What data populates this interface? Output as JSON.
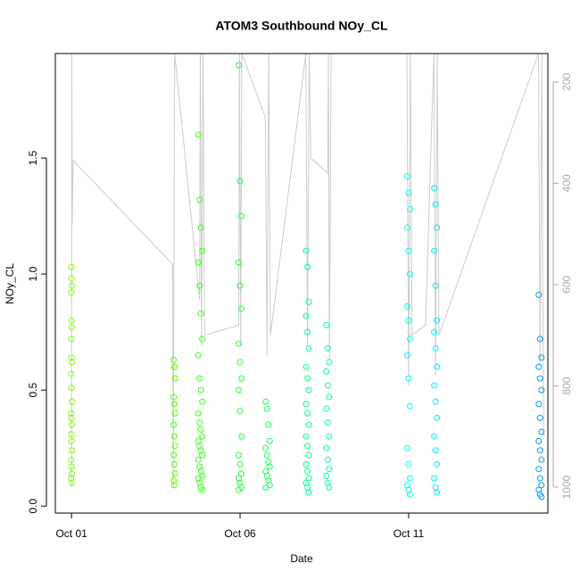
{
  "chart_data": {
    "type": "scatter",
    "title": "ATOM3 Southbound NOy_CL",
    "x_label": "Date",
    "y_label": "NOy_CL",
    "xlim": [
      0.52,
      15.13
    ],
    "xticks": [
      {
        "value": 1,
        "label": "Oct 01"
      },
      {
        "value": 6,
        "label": "Oct 06"
      },
      {
        "value": 11,
        "label": "Oct 11"
      }
    ],
    "ylim": [
      -0.03,
      1.95
    ],
    "yticks": [
      {
        "value": 0,
        "label": "0.0"
      },
      0.5,
      {
        "value": 1,
        "label": "1.0"
      },
      1.5
    ],
    "y2lim": [
      1051,
      144
    ],
    "y2ticks": [
      200,
      400,
      600,
      800,
      1000
    ],
    "series": [
      {
        "color": "#80ff00",
        "x": [
          0.99,
          1.0,
          1.01,
          0.99,
          1.0,
          1.01,
          0.99,
          1.0,
          1.01,
          0.99,
          1.0,
          1.01,
          0.99,
          1.0,
          1.01,
          0.99,
          1.0,
          1.01,
          0.99,
          1.0,
          1.01,
          0.99,
          1.0
        ],
        "values": [
          1.03,
          0.98,
          0.95,
          0.92,
          0.8,
          0.77,
          0.72,
          0.64,
          0.62,
          0.57,
          0.51,
          0.45,
          0.4,
          0.38,
          0.35,
          0.31,
          0.28,
          0.24,
          0.2,
          0.17,
          0.14,
          0.12,
          0.1
        ]
      },
      {
        "color": "#55ff00",
        "x": [
          4.03,
          4.05,
          4.07,
          4.03,
          4.05,
          4.07,
          4.03,
          4.05,
          4.07,
          4.03,
          4.05,
          4.07,
          4.03,
          4.05
        ],
        "values": [
          0.63,
          0.6,
          0.55,
          0.47,
          0.44,
          0.4,
          0.35,
          0.3,
          0.26,
          0.22,
          0.18,
          0.14,
          0.11,
          0.09
        ]
      },
      {
        "color": "#3aff1a",
        "x": [
          4.76,
          4.8,
          4.84,
          4.88,
          4.76,
          4.8,
          4.84,
          4.88,
          4.76,
          4.8,
          4.84,
          4.88,
          4.76,
          4.8,
          4.84,
          4.88,
          4.76,
          4.8,
          4.84,
          4.88,
          4.76,
          4.8,
          4.84,
          4.88,
          4.76,
          4.8,
          4.84,
          4.88
        ],
        "values": [
          1.6,
          1.32,
          1.2,
          1.1,
          1.05,
          0.95,
          0.83,
          0.72,
          0.65,
          0.55,
          0.5,
          0.45,
          0.4,
          0.36,
          0.33,
          0.3,
          0.28,
          0.26,
          0.24,
          0.22,
          0.2,
          0.17,
          0.15,
          0.13,
          0.12,
          0.1,
          0.08,
          0.07
        ]
      },
      {
        "color": "#22ff40",
        "x": [
          5.96,
          6.0,
          6.04,
          5.96,
          6.0,
          6.04,
          5.96,
          6.0,
          6.04,
          5.96,
          6.0,
          6.04,
          5.96,
          6.0,
          6.04,
          5.96,
          6.0,
          6.04,
          5.96
        ],
        "values": [
          1.9,
          1.4,
          1.25,
          1.05,
          0.95,
          0.85,
          0.7,
          0.62,
          0.55,
          0.5,
          0.41,
          0.3,
          0.22,
          0.18,
          0.14,
          0.12,
          0.1,
          0.08,
          0.07
        ]
      },
      {
        "color": "#1aff55",
        "x": [
          6.76,
          6.8,
          6.84,
          6.88,
          6.76,
          6.8,
          6.84,
          6.88,
          6.76,
          6.8,
          6.84,
          6.88,
          6.76
        ],
        "values": [
          0.45,
          0.42,
          0.35,
          0.28,
          0.25,
          0.22,
          0.19,
          0.17,
          0.15,
          0.13,
          0.11,
          0.09,
          0.08
        ]
      },
      {
        "color": "#00ff88",
        "x": [
          7.96,
          8.0,
          8.04,
          7.96,
          8.0,
          8.04,
          7.96,
          8.0,
          8.04,
          7.96,
          8.0,
          8.04,
          7.96,
          8.0,
          8.04,
          7.96,
          8.0,
          8.04,
          7.96,
          8.0,
          8.04
        ],
        "values": [
          1.1,
          1.03,
          0.88,
          0.82,
          0.75,
          0.68,
          0.6,
          0.55,
          0.5,
          0.44,
          0.4,
          0.35,
          0.3,
          0.26,
          0.22,
          0.18,
          0.15,
          0.12,
          0.1,
          0.08,
          0.06
        ]
      },
      {
        "color": "#00ff99",
        "x": [
          8.56,
          8.6,
          8.64,
          8.56,
          8.6,
          8.64,
          8.56,
          8.6,
          8.64,
          8.56,
          8.6,
          8.64,
          8.56,
          8.6,
          8.64
        ],
        "values": [
          0.78,
          0.68,
          0.62,
          0.58,
          0.52,
          0.47,
          0.42,
          0.36,
          0.3,
          0.25,
          0.2,
          0.16,
          0.13,
          0.1,
          0.08
        ]
      },
      {
        "color": "#00ffee",
        "x": [
          10.96,
          11.0,
          11.04,
          10.96,
          11.0,
          11.04,
          10.96,
          11.0,
          11.04,
          10.96,
          11.0,
          11.04,
          10.96,
          11.0,
          11.04,
          10.96,
          11.0,
          11.04
        ],
        "values": [
          1.42,
          1.35,
          1.28,
          1.2,
          1.1,
          1.0,
          0.86,
          0.8,
          0.72,
          0.65,
          0.55,
          0.43,
          0.25,
          0.18,
          0.12,
          0.09,
          0.07,
          0.05
        ]
      },
      {
        "color": "#00eeff",
        "x": [
          11.76,
          11.8,
          11.84,
          11.76,
          11.8,
          11.84,
          11.76,
          11.8,
          11.84,
          11.76,
          11.8,
          11.84,
          11.76,
          11.8,
          11.84,
          11.76,
          11.8,
          11.84
        ],
        "values": [
          1.37,
          1.3,
          1.2,
          1.1,
          0.95,
          0.8,
          0.75,
          0.68,
          0.6,
          0.52,
          0.45,
          0.38,
          0.3,
          0.24,
          0.18,
          0.12,
          0.08,
          0.06
        ]
      },
      {
        "color": "#0099ff",
        "x": [
          14.86,
          14.9,
          14.94,
          14.86,
          14.9,
          14.94,
          14.86,
          14.9,
          14.94,
          14.86,
          14.9,
          14.94,
          14.86,
          14.9,
          14.94,
          14.86,
          14.9,
          14.94
        ],
        "values": [
          0.91,
          0.72,
          0.64,
          0.6,
          0.55,
          0.5,
          0.44,
          0.38,
          0.32,
          0.28,
          0.24,
          0.2,
          0.16,
          0.12,
          0.09,
          0.07,
          0.05,
          0.04
        ]
      },
      {
        "color": "#cccccc",
        "axis": "y2",
        "x": [
          1.0,
          1.01,
          1.02,
          1.05,
          4.0,
          4.02,
          4.04,
          4.06,
          4.8,
          4.82,
          4.86,
          4.9,
          4.95,
          5.96,
          5.98,
          6.02,
          6.05,
          6.75,
          6.8,
          6.85,
          6.9,
          7.95,
          8.0,
          8.05,
          8.1,
          8.6,
          8.62,
          8.65,
          8.7,
          10.95,
          11.0,
          11.05,
          11.1,
          11.5,
          11.75,
          11.8,
          11.85,
          11.9,
          14.85,
          14.9,
          14.95,
          15.0
        ],
        "values": [
          1000,
          144,
          480,
          355,
          560,
          1000,
          510,
          144,
          630,
          144,
          720,
          144,
          700,
          680,
          144,
          720,
          144,
          270,
          740,
          144,
          700,
          144,
          720,
          144,
          350,
          380,
          144,
          750,
          144,
          144,
          800,
          144,
          700,
          680,
          144,
          780,
          144,
          700,
          144,
          760,
          144,
          900
        ]
      }
    ]
  }
}
